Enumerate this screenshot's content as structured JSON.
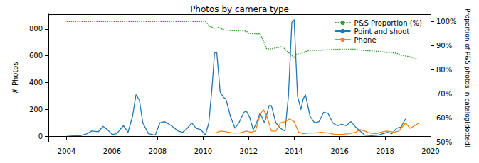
{
  "chart_data": {
    "type": "line",
    "title": "Photos by camera type",
    "x_label": null,
    "y_label": "# Photos",
    "y2_label": "Proportion of P&S photos in catalog[dotted]",
    "xlim": [
      2003.2,
      2020.0
    ],
    "xticks": [
      2004,
      2006,
      2008,
      2010,
      2012,
      2014,
      2016,
      2018,
      2020
    ],
    "ylim": [
      -40,
      910
    ],
    "yticks": [
      0,
      200,
      400,
      600,
      800
    ],
    "y2lim": [
      50,
      103
    ],
    "y2ticks": [
      {
        "value": 50,
        "label": "50%"
      },
      {
        "value": 60,
        "label": "60%"
      },
      {
        "value": 70,
        "label": "70%"
      },
      {
        "value": 80,
        "label": "80%"
      },
      {
        "value": 90,
        "label": "90%"
      },
      {
        "value": 100,
        "label": "100%"
      }
    ],
    "grid": false,
    "legend": "upper right",
    "series": [
      {
        "name": "P&S Proportion (%)",
        "color": "#2ca02c",
        "axis": "y2",
        "line_style": "dotted",
        "x": [
          2004.0,
          2006.0,
          2008.0,
          2010.1,
          2010.3,
          2010.5,
          2010.7,
          2010.9,
          2011.0,
          2011.5,
          2011.9,
          2012.0,
          2012.5,
          2012.6,
          2012.8,
          2013.0,
          2013.3,
          2013.5,
          2013.7,
          2014.0,
          2014.1,
          2014.3,
          2014.6,
          2015.0,
          2015.5,
          2016.0,
          2016.7,
          2017.0,
          2017.5,
          2018.0,
          2018.5,
          2018.7,
          2019.0,
          2019.4
        ],
        "values": [
          100,
          100,
          100,
          100,
          98,
          97,
          97.5,
          96.5,
          96.3,
          96.1,
          96,
          95,
          94.8,
          93,
          88.5,
          88.6,
          89.2,
          89.5,
          87.5,
          85,
          86.5,
          86.6,
          87.8,
          88,
          88.2,
          88.4,
          88.4,
          88,
          87.7,
          87.2,
          86.8,
          86,
          85.5,
          84.4
        ]
      },
      {
        "name": "Point and shoot",
        "color": "#1f77b4",
        "x": [
          2004.0,
          2004.3,
          2004.6,
          2004.9,
          2005.1,
          2005.4,
          2005.6,
          2005.8,
          2006.0,
          2006.2,
          2006.5,
          2006.7,
          2006.9,
          2007.05,
          2007.2,
          2007.35,
          2007.6,
          2007.9,
          2008.1,
          2008.3,
          2008.6,
          2008.9,
          2009.1,
          2009.3,
          2009.5,
          2009.7,
          2009.9,
          2010.1,
          2010.25,
          2010.4,
          2010.5,
          2010.6,
          2010.75,
          2010.9,
          2011.0,
          2011.2,
          2011.4,
          2011.6,
          2011.8,
          2011.9,
          2012.05,
          2012.2,
          2012.35,
          2012.5,
          2012.7,
          2012.9,
          2013.0,
          2013.2,
          2013.4,
          2013.6,
          2013.75,
          2013.9,
          2014.0,
          2014.15,
          2014.3,
          2014.4,
          2014.5,
          2014.7,
          2014.9,
          2015.1,
          2015.3,
          2015.5,
          2015.7,
          2015.9,
          2016.1,
          2016.3,
          2016.5,
          2016.7,
          2016.9,
          2017.1,
          2017.4,
          2017.7,
          2017.9,
          2018.1,
          2018.3,
          2018.5,
          2018.7,
          2018.9
        ],
        "values": [
          10,
          5,
          5,
          20,
          40,
          35,
          75,
          50,
          15,
          20,
          80,
          30,
          150,
          310,
          270,
          100,
          20,
          10,
          100,
          110,
          80,
          40,
          30,
          60,
          100,
          60,
          50,
          10,
          100,
          380,
          620,
          625,
          330,
          290,
          280,
          150,
          60,
          110,
          180,
          190,
          140,
          50,
          100,
          175,
          100,
          230,
          230,
          100,
          60,
          40,
          300,
          850,
          870,
          300,
          200,
          280,
          310,
          150,
          100,
          110,
          180,
          170,
          100,
          80,
          90,
          80,
          110,
          70,
          40,
          10,
          5,
          10,
          20,
          30,
          20,
          60,
          70,
          130
        ]
      },
      {
        "name": "Phone",
        "color": "#ff7f0e",
        "x": [
          2010.6,
          2010.8,
          2011.0,
          2011.3,
          2011.6,
          2011.9,
          2012.1,
          2012.3,
          2012.5,
          2012.65,
          2012.8,
          2013.0,
          2013.2,
          2013.4,
          2013.6,
          2013.8,
          2014.0,
          2014.2,
          2014.4,
          2014.6,
          2014.9,
          2015.2,
          2015.5,
          2015.8,
          2016.1,
          2016.4,
          2016.7,
          2016.9,
          2017.1,
          2017.3,
          2017.6,
          2017.9,
          2018.1,
          2018.4,
          2018.6,
          2018.9,
          2019.1,
          2019.3,
          2019.5
        ],
        "values": [
          30,
          40,
          35,
          25,
          25,
          40,
          30,
          40,
          160,
          200,
          150,
          40,
          40,
          100,
          110,
          130,
          110,
          30,
          20,
          25,
          25,
          30,
          25,
          15,
          15,
          20,
          30,
          50,
          40,
          25,
          20,
          35,
          40,
          30,
          40,
          100,
          60,
          80,
          100
        ]
      }
    ]
  }
}
